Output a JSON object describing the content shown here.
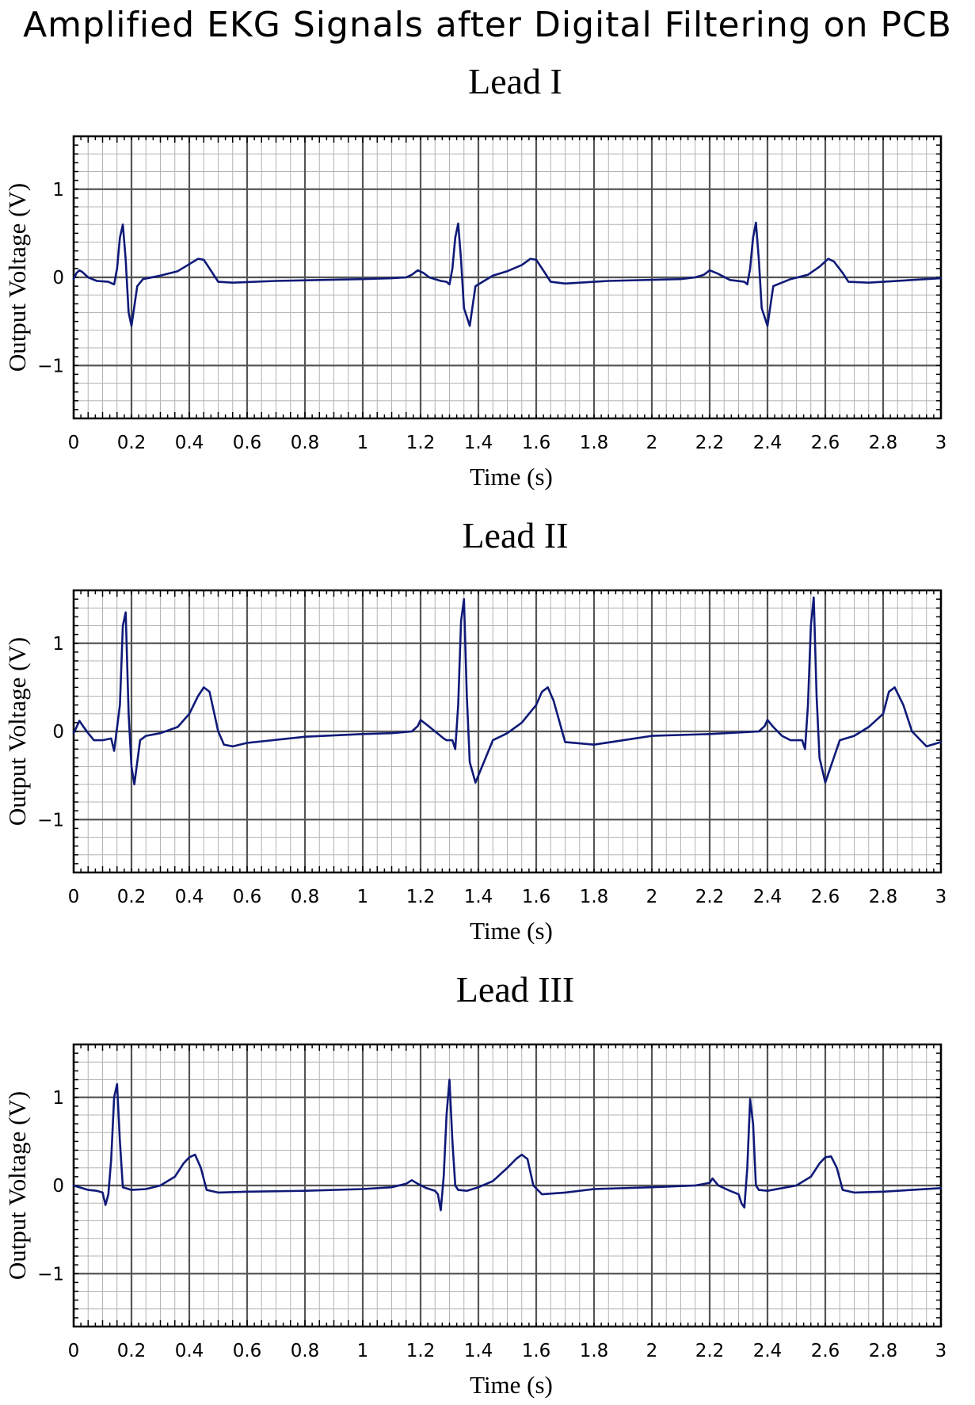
{
  "figure": {
    "title": "Amplified EKG Signals after Digital Filtering on PCB"
  },
  "colors": {
    "trace": "#0f1a78",
    "grid_minor": "#b4b4b4",
    "grid_major": "#555555",
    "frame": "#000000"
  },
  "chart_data": [
    {
      "type": "line",
      "title": "Lead I",
      "xlabel": "Time (s)",
      "ylabel": "Output Voltage (V)",
      "xlim": [
        0,
        3
      ],
      "ylim": [
        -1.6,
        1.6
      ],
      "xticks": [
        0,
        0.2,
        0.4,
        0.6,
        0.8,
        1,
        1.2,
        1.4,
        1.6,
        1.8,
        2,
        2.2,
        2.4,
        2.6,
        2.8,
        3
      ],
      "xtick_labels": [
        "0",
        "0.2",
        "0.4",
        "0.6",
        "0.8",
        "1",
        "1.2",
        "1.4",
        "1.6",
        "1.8",
        "2",
        "2.2",
        "2.4",
        "2.6",
        "2.8",
        "3"
      ],
      "yticks": [
        -1,
        0,
        1
      ],
      "ytick_labels": [
        "−1",
        "0",
        "1"
      ],
      "grid": true,
      "series": [
        {
          "name": "Lead I",
          "x": [
            0,
            0.01,
            0.02,
            0.03,
            0.05,
            0.08,
            0.12,
            0.14,
            0.15,
            0.16,
            0.17,
            0.18,
            0.19,
            0.2,
            0.22,
            0.24,
            0.3,
            0.36,
            0.4,
            0.43,
            0.45,
            0.48,
            0.5,
            0.55,
            0.7,
            1.0,
            1.1,
            1.15,
            1.17,
            1.19,
            1.21,
            1.23,
            1.27,
            1.29,
            1.3,
            1.31,
            1.32,
            1.33,
            1.34,
            1.35,
            1.37,
            1.39,
            1.45,
            1.5,
            1.55,
            1.58,
            1.6,
            1.63,
            1.65,
            1.7,
            1.85,
            2.1,
            2.15,
            2.18,
            2.2,
            2.23,
            2.27,
            2.32,
            2.33,
            2.34,
            2.35,
            2.36,
            2.37,
            2.38,
            2.4,
            2.42,
            2.48,
            2.54,
            2.58,
            2.61,
            2.63,
            2.66,
            2.68,
            2.75,
            3.0
          ],
          "y": [
            -0.02,
            0.05,
            0.08,
            0.06,
            0.0,
            -0.04,
            -0.05,
            -0.08,
            0.1,
            0.45,
            0.6,
            0.2,
            -0.4,
            -0.55,
            -0.1,
            -0.02,
            0.02,
            0.07,
            0.15,
            0.21,
            0.2,
            0.05,
            -0.05,
            -0.06,
            -0.04,
            -0.02,
            -0.01,
            0.0,
            0.03,
            0.08,
            0.05,
            0.0,
            -0.04,
            -0.05,
            -0.08,
            0.1,
            0.45,
            0.61,
            0.2,
            -0.35,
            -0.55,
            -0.1,
            0.02,
            0.07,
            0.14,
            0.21,
            0.2,
            0.05,
            -0.05,
            -0.07,
            -0.04,
            -0.02,
            0.0,
            0.03,
            0.08,
            0.04,
            -0.03,
            -0.05,
            -0.08,
            0.1,
            0.45,
            0.62,
            0.2,
            -0.35,
            -0.55,
            -0.1,
            -0.02,
            0.03,
            0.12,
            0.21,
            0.18,
            0.05,
            -0.05,
            -0.06,
            -0.01
          ]
        }
      ]
    },
    {
      "type": "line",
      "title": "Lead II",
      "xlabel": "Time (s)",
      "ylabel": "Output Voltage (V)",
      "xlim": [
        0,
        3
      ],
      "ylim": [
        -1.6,
        1.6
      ],
      "xticks": [
        0,
        0.2,
        0.4,
        0.6,
        0.8,
        1,
        1.2,
        1.4,
        1.6,
        1.8,
        2,
        2.2,
        2.4,
        2.6,
        2.8,
        3
      ],
      "xtick_labels": [
        "0",
        "0.2",
        "0.4",
        "0.6",
        "0.8",
        "1",
        "1.2",
        "1.4",
        "1.6",
        "1.8",
        "2",
        "2.2",
        "2.4",
        "2.6",
        "2.8",
        "3"
      ],
      "yticks": [
        -1,
        0,
        1
      ],
      "ytick_labels": [
        "−1",
        "0",
        "1"
      ],
      "grid": true,
      "series": [
        {
          "name": "Lead II",
          "x": [
            0,
            0.01,
            0.02,
            0.03,
            0.05,
            0.07,
            0.1,
            0.13,
            0.14,
            0.16,
            0.17,
            0.18,
            0.19,
            0.2,
            0.21,
            0.23,
            0.25,
            0.3,
            0.36,
            0.4,
            0.43,
            0.45,
            0.47,
            0.48,
            0.5,
            0.52,
            0.55,
            0.6,
            0.8,
            1.0,
            1.1,
            1.17,
            1.19,
            1.2,
            1.22,
            1.25,
            1.28,
            1.29,
            1.31,
            1.32,
            1.33,
            1.34,
            1.35,
            1.36,
            1.37,
            1.39,
            1.45,
            1.5,
            1.55,
            1.6,
            1.62,
            1.64,
            1.66,
            1.7,
            1.8,
            2.0,
            2.2,
            2.37,
            2.39,
            2.4,
            2.42,
            2.45,
            2.48,
            2.49,
            2.52,
            2.53,
            2.54,
            2.55,
            2.56,
            2.57,
            2.58,
            2.6,
            2.65,
            2.7,
            2.75,
            2.8,
            2.82,
            2.84,
            2.87,
            2.9,
            2.95,
            3.0
          ],
          "y": [
            -0.02,
            0.05,
            0.12,
            0.07,
            -0.02,
            -0.1,
            -0.1,
            -0.08,
            -0.22,
            0.3,
            1.2,
            1.35,
            0.2,
            -0.4,
            -0.6,
            -0.1,
            -0.05,
            -0.02,
            0.05,
            0.2,
            0.4,
            0.5,
            0.45,
            0.3,
            0.0,
            -0.15,
            -0.17,
            -0.13,
            -0.06,
            -0.03,
            -0.02,
            0.0,
            0.06,
            0.13,
            0.08,
            0.0,
            -0.08,
            -0.1,
            -0.1,
            -0.2,
            0.3,
            1.25,
            1.5,
            0.4,
            -0.35,
            -0.58,
            -0.1,
            -0.02,
            0.1,
            0.3,
            0.45,
            0.5,
            0.35,
            -0.12,
            -0.15,
            -0.05,
            -0.03,
            0.0,
            0.06,
            0.13,
            0.05,
            -0.05,
            -0.1,
            -0.1,
            -0.1,
            -0.2,
            0.3,
            1.2,
            1.52,
            0.4,
            -0.3,
            -0.58,
            -0.1,
            -0.05,
            0.05,
            0.2,
            0.45,
            0.5,
            0.3,
            0.0,
            -0.17,
            -0.12
          ]
        }
      ]
    },
    {
      "type": "line",
      "title": "Lead III",
      "xlabel": "Time (s)",
      "ylabel": "Output Voltage (V)",
      "xlim": [
        0,
        3
      ],
      "ylim": [
        -1.6,
        1.6
      ],
      "xticks": [
        0,
        0.2,
        0.4,
        0.6,
        0.8,
        1,
        1.2,
        1.4,
        1.6,
        1.8,
        2,
        2.2,
        2.4,
        2.6,
        2.8,
        3
      ],
      "xtick_labels": [
        "0",
        "0.2",
        "0.4",
        "0.6",
        "0.8",
        "1",
        "1.2",
        "1.4",
        "1.6",
        "1.8",
        "2",
        "2.2",
        "2.4",
        "2.6",
        "2.8",
        "3"
      ],
      "yticks": [
        -1,
        0,
        1
      ],
      "ytick_labels": [
        "−1",
        "0",
        "1"
      ],
      "grid": true,
      "series": [
        {
          "name": "Lead III",
          "x": [
            0,
            0.02,
            0.05,
            0.08,
            0.1,
            0.11,
            0.12,
            0.13,
            0.14,
            0.15,
            0.16,
            0.17,
            0.2,
            0.25,
            0.3,
            0.35,
            0.38,
            0.4,
            0.42,
            0.44,
            0.46,
            0.5,
            0.6,
            0.8,
            1.0,
            1.1,
            1.15,
            1.17,
            1.19,
            1.22,
            1.25,
            1.26,
            1.27,
            1.28,
            1.29,
            1.3,
            1.31,
            1.32,
            1.33,
            1.36,
            1.4,
            1.45,
            1.5,
            1.53,
            1.55,
            1.57,
            1.59,
            1.62,
            1.7,
            1.8,
            2.0,
            2.15,
            2.2,
            2.21,
            2.23,
            2.27,
            2.3,
            2.31,
            2.32,
            2.33,
            2.34,
            2.35,
            2.36,
            2.37,
            2.4,
            2.5,
            2.55,
            2.58,
            2.6,
            2.62,
            2.64,
            2.66,
            2.7,
            2.8,
            3.0
          ],
          "y": [
            0.0,
            -0.02,
            -0.05,
            -0.06,
            -0.08,
            -0.22,
            -0.1,
            0.3,
            1.0,
            1.15,
            0.5,
            -0.02,
            -0.05,
            -0.04,
            0.0,
            0.1,
            0.25,
            0.32,
            0.35,
            0.2,
            -0.05,
            -0.08,
            -0.07,
            -0.06,
            -0.04,
            -0.02,
            0.02,
            0.06,
            0.02,
            -0.03,
            -0.06,
            -0.1,
            -0.28,
            0.1,
            0.8,
            1.2,
            0.5,
            0.0,
            -0.05,
            -0.06,
            -0.02,
            0.05,
            0.2,
            0.3,
            0.35,
            0.3,
            0.0,
            -0.1,
            -0.08,
            -0.04,
            -0.02,
            0.0,
            0.03,
            0.08,
            0.0,
            -0.06,
            -0.1,
            -0.2,
            -0.25,
            0.2,
            0.98,
            0.7,
            0.0,
            -0.05,
            -0.06,
            0.0,
            0.1,
            0.25,
            0.32,
            0.33,
            0.2,
            -0.05,
            -0.08,
            -0.07,
            -0.03
          ]
        }
      ]
    }
  ]
}
